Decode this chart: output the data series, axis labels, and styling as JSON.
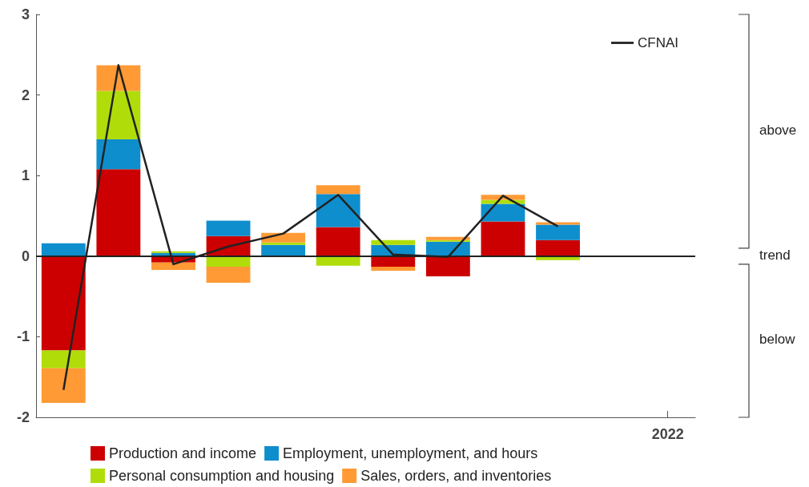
{
  "chart_data": {
    "type": "bar",
    "stacked": true,
    "categories": [
      null,
      null,
      null,
      null,
      null,
      null,
      null,
      null,
      null,
      null,
      null,
      "2022"
    ],
    "series": [
      {
        "name": "Production and income",
        "color": "#cc0000",
        "values": [
          -1.17,
          1.08,
          -0.08,
          0.25,
          0,
          0.36,
          -0.13,
          -0.25,
          0.43,
          0.2,
          null,
          null
        ]
      },
      {
        "name": "Employment, unemployment, and hours",
        "color": "#0f8ecd",
        "values": [
          0.16,
          0.37,
          0.04,
          0.19,
          0.14,
          0.41,
          0.14,
          0.18,
          0.22,
          0.19,
          null,
          null
        ]
      },
      {
        "name": "Personal consumption and housing",
        "color": "#b0dd0a",
        "values": [
          -0.22,
          0.6,
          0.02,
          -0.13,
          0.03,
          -0.12,
          0.06,
          0.02,
          0.05,
          -0.05,
          null,
          null
        ]
      },
      {
        "name": "Sales, orders, and inventories",
        "color": "#ff9a35",
        "values": [
          -0.43,
          0.32,
          -0.09,
          -0.2,
          0.12,
          0.11,
          -0.05,
          0.04,
          0.06,
          0.03,
          null,
          null
        ]
      },
      {
        "name": "CFNAI",
        "type": "line",
        "color": "#222222",
        "values": [
          -1.66,
          2.37,
          -0.1,
          0.12,
          0.28,
          0.76,
          0.02,
          -0.01,
          0.75,
          0.37,
          null,
          null
        ]
      }
    ],
    "ylim": [
      -2,
      3
    ],
    "yticks": [
      -2,
      -1,
      0,
      1,
      2,
      3
    ],
    "grid": false,
    "legend": "bottom",
    "marker": "none",
    "ref_lines": [
      {
        "axis": "y",
        "value": 0,
        "color": "#222222"
      }
    ],
    "annotations": [
      "above",
      "trend",
      "below"
    ]
  }
}
